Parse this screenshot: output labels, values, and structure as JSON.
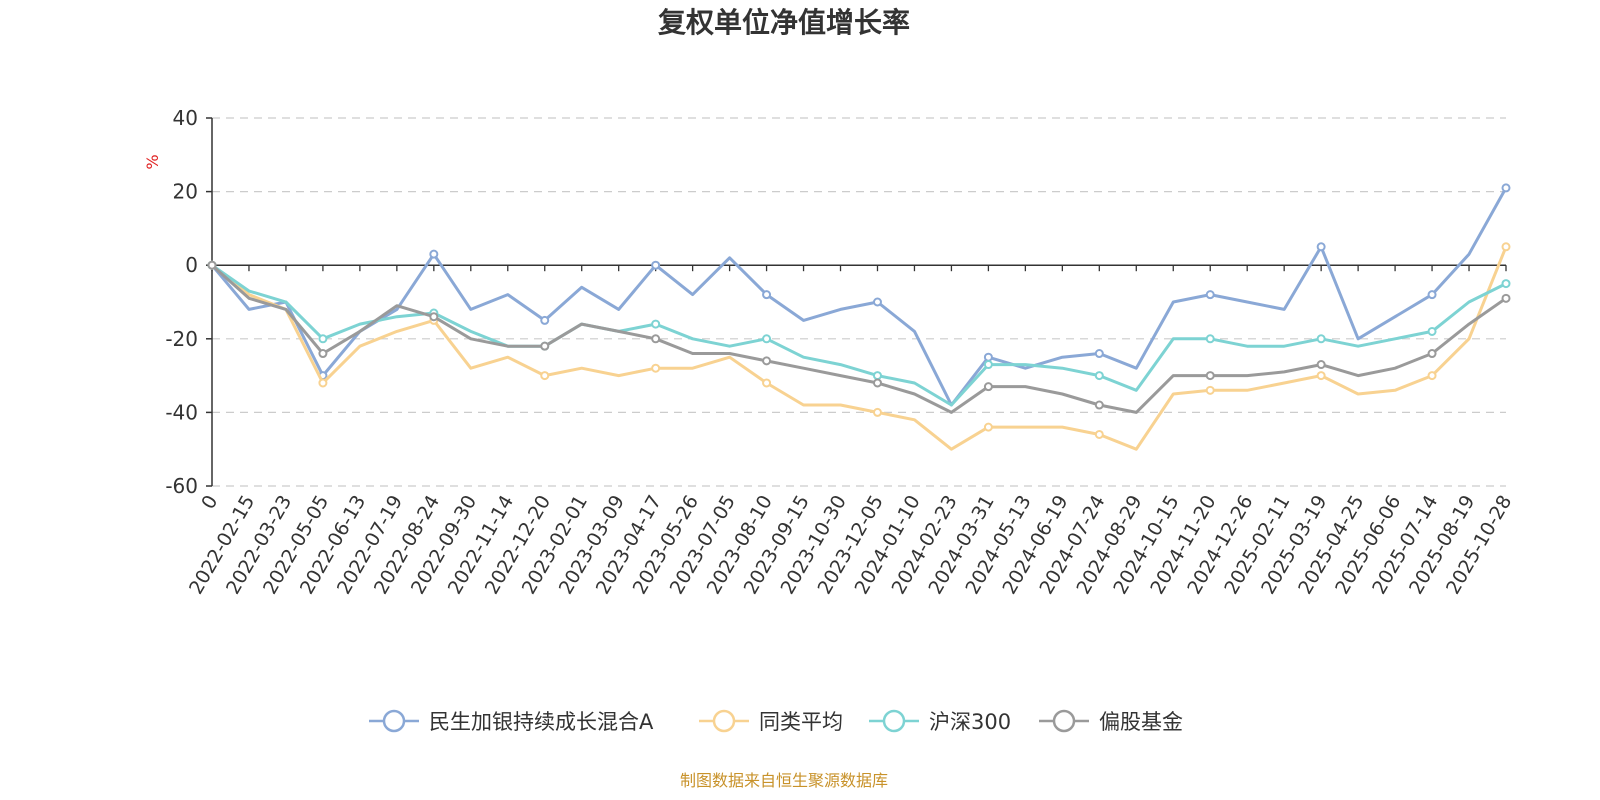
{
  "chart_data": {
    "type": "line",
    "title": "复权单位净值增长率",
    "ylabel": "%",
    "ylim": [
      -60,
      40
    ],
    "yticks": [
      40,
      20,
      0,
      -20,
      -40,
      -60
    ],
    "grid": true,
    "legend_position": "bottom",
    "source": "制图数据来自恒生聚源数据库",
    "x": [
      "0",
      "2022-02-15",
      "2022-03-23",
      "2022-05-05",
      "2022-06-13",
      "2022-07-19",
      "2022-08-24",
      "2022-09-30",
      "2022-11-14",
      "2022-12-20",
      "2023-02-01",
      "2023-03-09",
      "2023-04-17",
      "2023-05-26",
      "2023-07-05",
      "2023-08-10",
      "2023-09-15",
      "2023-10-30",
      "2023-12-05",
      "2024-01-10",
      "2024-02-23",
      "2024-03-31",
      "2024-05-13",
      "2024-06-19",
      "2024-07-24",
      "2024-08-29",
      "2024-10-15",
      "2024-11-20",
      "2024-12-26",
      "2025-02-11",
      "2025-03-19",
      "2025-04-25",
      "2025-06-06",
      "2025-07-14",
      "2025-08-19",
      "2025-10-28"
    ],
    "series": [
      {
        "name": "民生加银持续成长混合A",
        "color": "#8aa8d6",
        "values": [
          0,
          -12,
          -10,
          -30,
          -18,
          -12,
          3,
          -12,
          -8,
          -15,
          -6,
          -12,
          0,
          -8,
          2,
          -8,
          -15,
          -12,
          -10,
          -18,
          -38,
          -25,
          -28,
          -25,
          -24,
          -28,
          -10,
          -8,
          -10,
          -12,
          5,
          -20,
          -14,
          -8,
          3,
          21
        ]
      },
      {
        "name": "同类平均",
        "color": "#f8d291",
        "values": [
          0,
          -8,
          -12,
          -32,
          -22,
          -18,
          -15,
          -28,
          -25,
          -30,
          -28,
          -30,
          -28,
          -28,
          -25,
          -32,
          -38,
          -38,
          -40,
          -42,
          -50,
          -44,
          -44,
          -44,
          -46,
          -50,
          -35,
          -34,
          -34,
          -32,
          -30,
          -35,
          -34,
          -30,
          -20,
          5
        ]
      },
      {
        "name": "沪深300",
        "color": "#7dd3d3",
        "values": [
          0,
          -7,
          -10,
          -20,
          -16,
          -14,
          -13,
          -18,
          -22,
          -22,
          -16,
          -18,
          -16,
          -20,
          -22,
          -20,
          -25,
          -27,
          -30,
          -32,
          -38,
          -27,
          -27,
          -28,
          -30,
          -34,
          -20,
          -20,
          -22,
          -22,
          -20,
          -22,
          -20,
          -18,
          -10,
          -5
        ]
      },
      {
        "name": "偏股基金",
        "color": "#9a9a9a",
        "values": [
          0,
          -9,
          -12,
          -24,
          -18,
          -11,
          -14,
          -20,
          -22,
          -22,
          -16,
          -18,
          -20,
          -24,
          -24,
          -26,
          -28,
          -30,
          -32,
          -35,
          -40,
          -33,
          -33,
          -35,
          -38,
          -40,
          -30,
          -30,
          -30,
          -29,
          -27,
          -30,
          -28,
          -24,
          -16,
          -9
        ]
      }
    ]
  }
}
